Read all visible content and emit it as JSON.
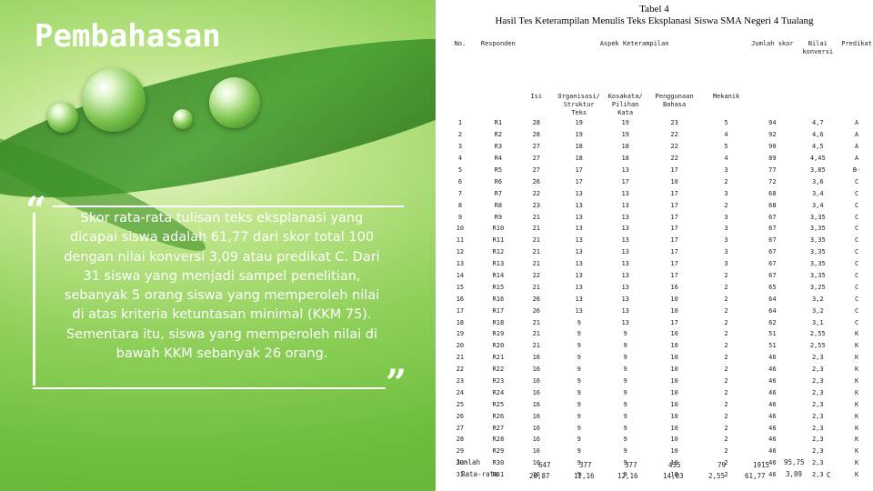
{
  "slide": {
    "title": "Pembahasan",
    "quote_open": "“",
    "quote_close": "”",
    "quote_text": "Skor rata-rata tulisan teks eksplanasi yang dicapai siswa adalah 61,77 dari skor total 100 dengan nilai konversi 3,09 atau predikat C. Dari 31 siswa yang menjadi sampel penelitian, sebanyak 5 orang siswa yang memperoleh nilai di atas kriteria ketuntasan minimal (KKM 75). Sementara itu, siswa yang memperoleh nilai di bawah KKM sebanyak 26 orang."
  },
  "document": {
    "title_line1": "Tabel 4",
    "title_line2": "Hasil Tes Keterampilan Menulis Teks Eksplanasi Siswa SMA Negeri 4 Tualang",
    "headers": {
      "no": "No.",
      "responden": "Responden",
      "aspek": "Aspek Keterampilan",
      "isi": "Isi",
      "organisasi": "Organisasi/ Struktur Teks",
      "kosakata": "Kosakata/ Pilihan Kata",
      "penggunaan": "Penggunaan Bahasa",
      "mekanik": "Mekanik",
      "jumlah_skor": "Jumlah skor",
      "nilai": "Nilai konversi",
      "predikat": "Predikat"
    },
    "rows": [
      [
        "1",
        "R1",
        "28",
        "19",
        "19",
        "23",
        "5",
        "94",
        "4,7",
        "A"
      ],
      [
        "2",
        "R2",
        "28",
        "19",
        "19",
        "22",
        "4",
        "92",
        "4,6",
        "A"
      ],
      [
        "3",
        "R3",
        "27",
        "18",
        "18",
        "22",
        "5",
        "90",
        "4,5",
        "A"
      ],
      [
        "4",
        "R4",
        "27",
        "18",
        "18",
        "22",
        "4",
        "89",
        "4,45",
        "A"
      ],
      [
        "5",
        "R5",
        "27",
        "17",
        "13",
        "17",
        "3",
        "77",
        "3,85",
        "B-"
      ],
      [
        "6",
        "R6",
        "26",
        "17",
        "17",
        "10",
        "2",
        "72",
        "3,6",
        "C"
      ],
      [
        "7",
        "R7",
        "22",
        "13",
        "13",
        "17",
        "3",
        "68",
        "3,4",
        "C"
      ],
      [
        "8",
        "R8",
        "23",
        "13",
        "13",
        "17",
        "2",
        "68",
        "3,4",
        "C"
      ],
      [
        "9",
        "R9",
        "21",
        "13",
        "13",
        "17",
        "3",
        "67",
        "3,35",
        "C"
      ],
      [
        "10",
        "R10",
        "21",
        "13",
        "13",
        "17",
        "3",
        "67",
        "3,35",
        "C"
      ],
      [
        "11",
        "R11",
        "21",
        "13",
        "13",
        "17",
        "3",
        "67",
        "3,35",
        "C"
      ],
      [
        "12",
        "R12",
        "21",
        "13",
        "13",
        "17",
        "3",
        "67",
        "3,35",
        "C"
      ],
      [
        "13",
        "R13",
        "21",
        "13",
        "13",
        "17",
        "3",
        "67",
        "3,35",
        "C"
      ],
      [
        "14",
        "R14",
        "22",
        "13",
        "13",
        "17",
        "2",
        "67",
        "3,35",
        "C"
      ],
      [
        "15",
        "R15",
        "21",
        "13",
        "13",
        "16",
        "2",
        "65",
        "3,25",
        "C"
      ],
      [
        "16",
        "R16",
        "26",
        "13",
        "13",
        "10",
        "2",
        "64",
        "3,2",
        "C"
      ],
      [
        "17",
        "R17",
        "26",
        "13",
        "13",
        "10",
        "2",
        "64",
        "3,2",
        "C"
      ],
      [
        "18",
        "R18",
        "21",
        "9",
        "13",
        "17",
        "2",
        "62",
        "3,1",
        "C"
      ],
      [
        "19",
        "R19",
        "21",
        "9",
        "9",
        "10",
        "2",
        "51",
        "2,55",
        "K"
      ],
      [
        "20",
        "R20",
        "21",
        "9",
        "9",
        "10",
        "2",
        "51",
        "2,55",
        "K"
      ],
      [
        "21",
        "R21",
        "16",
        "9",
        "9",
        "10",
        "2",
        "46",
        "2,3",
        "K"
      ],
      [
        "22",
        "R22",
        "16",
        "9",
        "9",
        "10",
        "2",
        "46",
        "2,3",
        "K"
      ],
      [
        "23",
        "R23",
        "16",
        "9",
        "9",
        "10",
        "2",
        "46",
        "2,3",
        "K"
      ],
      [
        "24",
        "R24",
        "16",
        "9",
        "9",
        "10",
        "2",
        "46",
        "2,3",
        "K"
      ],
      [
        "25",
        "R25",
        "16",
        "9",
        "9",
        "10",
        "2",
        "46",
        "2,3",
        "K"
      ],
      [
        "26",
        "R26",
        "16",
        "9",
        "9",
        "10",
        "2",
        "46",
        "2,3",
        "K"
      ],
      [
        "27",
        "R27",
        "16",
        "9",
        "9",
        "10",
        "2",
        "46",
        "2,3",
        "K"
      ],
      [
        "28",
        "R28",
        "16",
        "9",
        "9",
        "10",
        "2",
        "46",
        "2,3",
        "K"
      ],
      [
        "29",
        "R29",
        "16",
        "9",
        "9",
        "10",
        "2",
        "46",
        "2,3",
        "K"
      ],
      [
        "30",
        "R30",
        "16",
        "9",
        "9",
        "10",
        "2",
        "46",
        "2,3",
        "K"
      ],
      [
        "31",
        "R31",
        "16",
        "9",
        "9",
        "10",
        "2",
        "46",
        "2,3",
        "K"
      ]
    ],
    "footer": {
      "jumlah_label": "Jumlah",
      "ratarata_label": "Rata-rata",
      "jumlah_values": [
        "647",
        "377",
        "377",
        "435",
        "79",
        "1915",
        "95,75"
      ],
      "ratarata_values": [
        "20,87",
        "12,16",
        "12,16",
        "14,03",
        "2,55",
        "61,77",
        "3,09",
        "C"
      ]
    }
  }
}
